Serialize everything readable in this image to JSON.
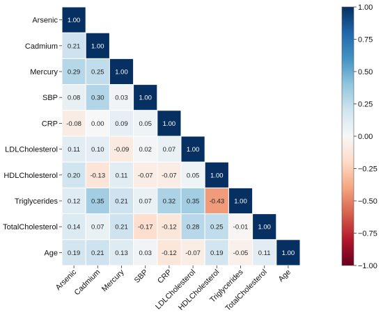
{
  "chart_data": {
    "type": "heatmap",
    "variables": [
      "Arsenic",
      "Cadmium",
      "Mercury",
      "SBP",
      "CRP",
      "LDLCholesterol",
      "HDLCholesterol",
      "Triglycerides",
      "TotalCholesterol",
      "Age"
    ],
    "matrix": [
      [
        "1.00"
      ],
      [
        "0.21",
        "1.00"
      ],
      [
        "0.29",
        "0.25",
        "1.00"
      ],
      [
        "0.08",
        "0.30",
        "0.03",
        "1.00"
      ],
      [
        "-0.08",
        "0.00",
        "0.09",
        "0.05",
        "1.00"
      ],
      [
        "0.11",
        "0.10",
        "-0.09",
        "0.02",
        "0.07",
        "1.00"
      ],
      [
        "0.20",
        "-0.13",
        "0.11",
        "-0.07",
        "-0.07",
        "0.05",
        "1.00"
      ],
      [
        "0.12",
        "0.35",
        "0.21",
        "0.07",
        "0.32",
        "0.35",
        "-0.43",
        "1.00"
      ],
      [
        "0.14",
        "0.07",
        "0.21",
        "-0.17",
        "-0.12",
        "0.28",
        "0.25",
        "-0.01",
        "1.00"
      ],
      [
        "0.19",
        "0.21",
        "0.13",
        "0.03",
        "-0.12",
        "-0.07",
        "0.19",
        "-0.05",
        "0.11",
        "1.00"
      ]
    ],
    "mask": "upper-triangle",
    "colorscale": {
      "name": "RdBu",
      "vmin": -1.0,
      "vmax": 1.0,
      "stops": [
        "#67001f",
        "#b2182b",
        "#d6604d",
        "#f4a582",
        "#fddbc7",
        "#f7f7f7",
        "#d1e5f0",
        "#92c5de",
        "#4393c3",
        "#2166ac",
        "#053061"
      ]
    },
    "colorbar_ticks": [
      "1.00",
      "0.75",
      "0.50",
      "0.25",
      "0.00",
      "−0.25",
      "−0.50",
      "−0.75",
      "−1.00"
    ],
    "cell_border_color": "#ffffff"
  }
}
